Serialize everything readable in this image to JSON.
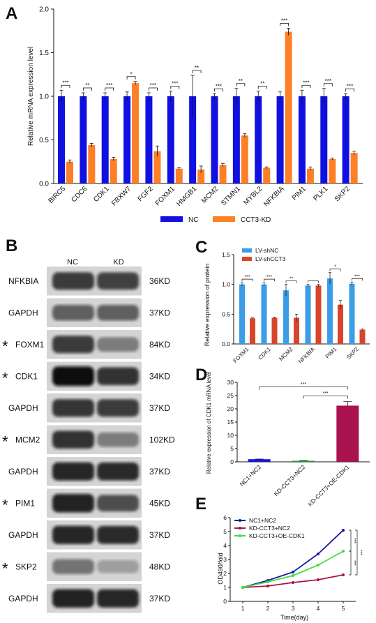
{
  "panels": [
    {
      "label": "A"
    },
    {
      "label": "B"
    },
    {
      "label": "C"
    },
    {
      "label": "D"
    },
    {
      "label": "E"
    }
  ],
  "chart_data": [
    {
      "id": "A",
      "type": "bar",
      "ylabel": "Relative mRNA expression level",
      "ylim": [
        0,
        2.0
      ],
      "yticks": [
        0.0,
        0.5,
        1.0,
        1.5,
        2.0
      ],
      "categories": [
        "BIRC5",
        "CDC6",
        "CDK1",
        "FBXW7",
        "FGF2",
        "FOXM1",
        "HMGB1",
        "MCM2",
        "STMN1",
        "MYBL2",
        "NFKBIA",
        "PIM1",
        "PLK1",
        "SKP2"
      ],
      "series": [
        {
          "name": "NC",
          "color": "#1010e0",
          "values": [
            1,
            1,
            1,
            1,
            1,
            1,
            1,
            1,
            1,
            1,
            1,
            1,
            1,
            1
          ],
          "errors": [
            0.07,
            0.04,
            0.04,
            0.05,
            0.04,
            0.06,
            0.24,
            0.03,
            0.09,
            0.06,
            0.05,
            0.07,
            0.09,
            0.03
          ]
        },
        {
          "name": "CCT3-KD",
          "color": "#ff7f27",
          "values": [
            0.25,
            0.44,
            0.28,
            1.15,
            0.37,
            0.17,
            0.16,
            0.21,
            0.55,
            0.18,
            1.74,
            0.17,
            0.28,
            0.35
          ],
          "errors": [
            0.02,
            0.02,
            0.02,
            0.02,
            0.06,
            0.01,
            0.04,
            0.02,
            0.02,
            0.01,
            0.04,
            0.02,
            0.01,
            0.02
          ]
        }
      ],
      "significance": [
        "***",
        "**",
        "***",
        "*",
        "***",
        "***",
        "**",
        "***",
        "**",
        "**",
        "***",
        "***",
        "***",
        "***"
      ],
      "legend": "bottom"
    },
    {
      "id": "C",
      "type": "bar",
      "ylabel": "Relative expression of protein",
      "ylim": [
        0,
        1.5
      ],
      "yticks": [
        0.0,
        0.5,
        1.0,
        1.5
      ],
      "categories": [
        "FOXM1",
        "CDK1",
        "MCM2",
        "NFKBIA",
        "PIM1",
        "SKP2"
      ],
      "series": [
        {
          "name": "LV-shNC",
          "color": "#3b9de8",
          "values": [
            1.0,
            1.0,
            0.9,
            0.98,
            1.1,
            1.01
          ],
          "errors": [
            0.03,
            0.03,
            0.1,
            0.02,
            0.1,
            0.03
          ]
        },
        {
          "name": "LV-shCCT3",
          "color": "#d9452a",
          "values": [
            0.43,
            0.44,
            0.44,
            0.98,
            0.66,
            0.24
          ],
          "errors": [
            0.01,
            0.01,
            0.06,
            0.02,
            0.07,
            0.01
          ]
        }
      ],
      "significance": [
        "***",
        "***",
        "**",
        "",
        "*",
        "***"
      ],
      "legend": "top-left"
    },
    {
      "id": "D",
      "type": "bar",
      "ylabel": "Relative expression of CDK1 mRNA level",
      "ylim": [
        0,
        30
      ],
      "yticks": [
        0,
        5,
        10,
        15,
        20,
        25,
        30
      ],
      "categories": [
        "NC1+NC2",
        "KD-CCT3+NC2",
        "KD-CCT3+OE-CDK1"
      ],
      "values": [
        1.0,
        0.4,
        21.2
      ],
      "errors": [
        0.05,
        0.05,
        1.5
      ],
      "colors": [
        "#1616d8",
        "#229b2a",
        "#a8124e"
      ],
      "significance": [
        {
          "from": 0,
          "to": 2,
          "label": "***"
        },
        {
          "from": 1,
          "to": 2,
          "label": "***"
        }
      ]
    },
    {
      "id": "E",
      "type": "line",
      "xlabel": "Time(day)",
      "ylabel": "OD490/fold",
      "xlim": [
        0.5,
        5.5
      ],
      "ylim": [
        0,
        6
      ],
      "xticks": [
        1,
        2,
        3,
        4,
        5
      ],
      "yticks": [
        0,
        1,
        2,
        3,
        4,
        5,
        6
      ],
      "x": [
        1,
        2,
        3,
        4,
        5
      ],
      "series": [
        {
          "name": "NC1+NC2",
          "color": "#1b1ba0",
          "values": [
            1.0,
            1.5,
            2.1,
            3.4,
            5.1
          ]
        },
        {
          "name": "KD-CCT3+NC2",
          "color": "#a8124e",
          "values": [
            1.0,
            1.1,
            1.35,
            1.55,
            1.9
          ]
        },
        {
          "name": "KD-CCT3+OE-CDK1",
          "color": "#3ee03e",
          "values": [
            1.0,
            1.4,
            1.85,
            2.6,
            3.6
          ]
        }
      ],
      "significance": [
        "***",
        "***",
        "***"
      ],
      "legend": "top-left"
    }
  ],
  "blot": {
    "column_labels": [
      "NC",
      "KD"
    ],
    "rows": [
      {
        "label": "NFKBIA",
        "size": "36KD",
        "star": false,
        "nc": 0.75,
        "kd": 0.72
      },
      {
        "label": "GAPDH",
        "size": "37KD",
        "star": false,
        "nc": 0.55,
        "kd": 0.55
      },
      {
        "label": "FOXM1",
        "size": "84KD",
        "star": true,
        "nc": 0.75,
        "kd": 0.4
      },
      {
        "label": "CDK1",
        "size": "34KD",
        "star": true,
        "nc": 1.0,
        "kd": 0.8
      },
      {
        "label": "GAPDH",
        "size": "37KD",
        "star": false,
        "nc": 0.78,
        "kd": 0.75
      },
      {
        "label": "MCM2",
        "size": "102KD",
        "star": true,
        "nc": 0.8,
        "kd": 0.4
      },
      {
        "label": "GAPDH",
        "size": "37KD",
        "star": false,
        "nc": 0.85,
        "kd": 0.82
      },
      {
        "label": "PIM1",
        "size": "45KD",
        "star": true,
        "nc": 0.88,
        "kd": 0.65
      },
      {
        "label": "GAPDH",
        "size": "37KD",
        "star": false,
        "nc": 0.85,
        "kd": 0.82
      },
      {
        "label": "SKP2",
        "size": "48KD",
        "star": true,
        "nc": 0.45,
        "kd": 0.22
      },
      {
        "label": "GAPDH",
        "size": "37KD",
        "star": false,
        "nc": 0.88,
        "kd": 0.85
      }
    ],
    "star_glyph": "*",
    "star_color": "#e0312f"
  }
}
